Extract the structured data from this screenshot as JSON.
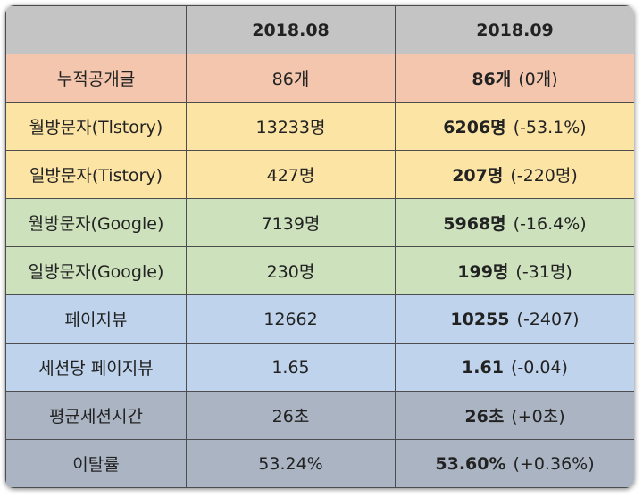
{
  "header": {
    "blank": "",
    "col1": "2018.08",
    "col2": "2018.09"
  },
  "rows": [
    {
      "label": "누적공개글",
      "prev": "86개",
      "curr": "86개",
      "diff": "(0개)"
    },
    {
      "label": "월방문자(Tlstory)",
      "prev": "13233명",
      "curr": "6206명",
      "diff": "(-53.1%)"
    },
    {
      "label": "일방문자(Tistory)",
      "prev": "427명",
      "curr": "207명",
      "diff": "(-220명)"
    },
    {
      "label": "월방문자(Google)",
      "prev": "7139명",
      "curr": "5968명",
      "diff": "(-16.4%)"
    },
    {
      "label": "일방문자(Google)",
      "prev": "230명",
      "curr": "199명",
      "diff": "(-31명)"
    },
    {
      "label": "페이지뷰",
      "prev": "12662",
      "curr": "10255",
      "diff": "(-2407)"
    },
    {
      "label": "세션당 페이지뷰",
      "prev": "1.65",
      "curr": "1.61",
      "diff": "(-0.04)"
    },
    {
      "label": "평균세션시간",
      "prev": "26초",
      "curr": "26초",
      "diff": "(+0초)"
    },
    {
      "label": "이탈률",
      "prev": "53.24%",
      "curr": "53.60%",
      "diff": "(+0.36%)"
    }
  ],
  "colors": {
    "header": "#c4c4c4",
    "orange": "#f4c6ae",
    "yellow": "#fce4a4",
    "green": "#cde1bc",
    "blue": "#bfd4ec",
    "gray": "#aab4c3"
  }
}
